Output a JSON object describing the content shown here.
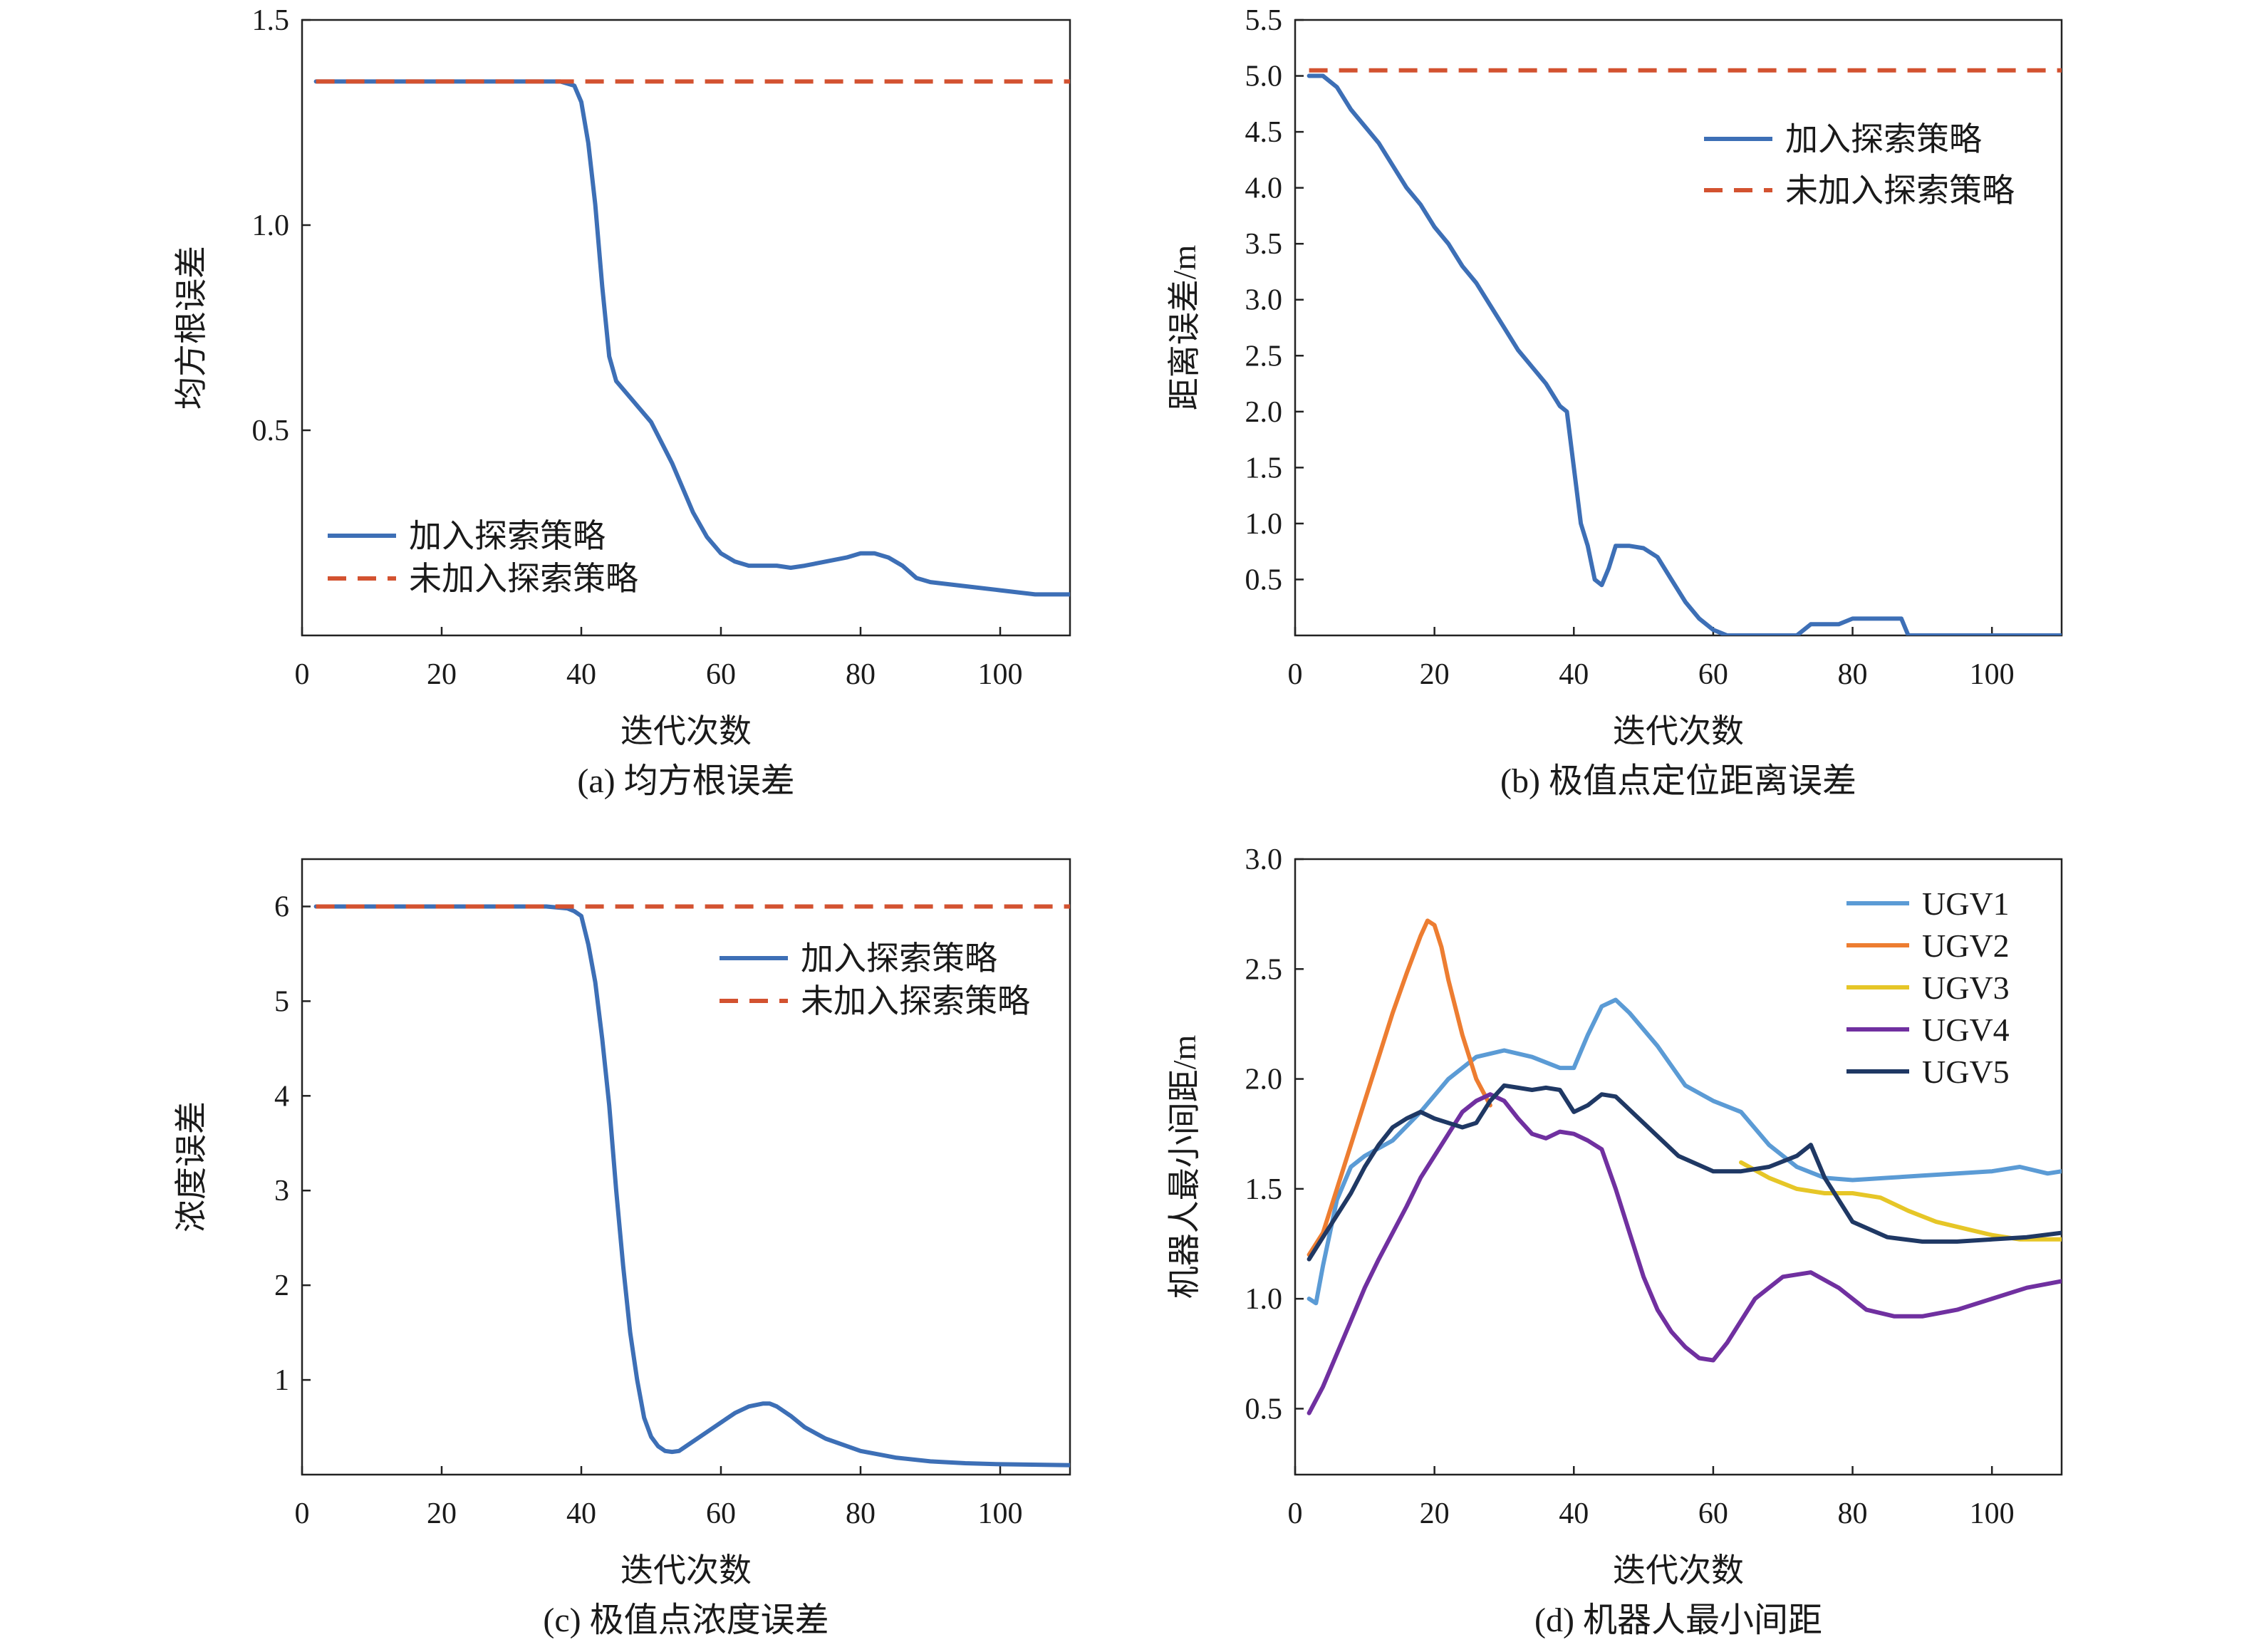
{
  "chart_data": [
    {
      "id": "a",
      "type": "line",
      "caption": "(a) 均方根误差",
      "xlabel": "迭代次数",
      "ylabel": "均方根误差",
      "xlim": [
        0,
        110
      ],
      "ylim": [
        0,
        1.5
      ],
      "xticks": [
        0,
        20,
        40,
        60,
        80,
        100
      ],
      "xtick_labels": [
        "0",
        "20",
        "40",
        "60",
        "80",
        "100"
      ],
      "yticks": [
        0.5,
        1.0,
        1.5
      ],
      "ytick_labels": [
        "0.5",
        "1.0",
        "1.5"
      ],
      "legend_position": "lower-left",
      "series": [
        {
          "name": "加入探索策略",
          "color": "#3d6fb6",
          "style": "solid",
          "x": [
            2,
            10,
            20,
            30,
            37,
            39,
            40,
            41,
            42,
            43,
            44,
            45,
            46,
            47,
            50,
            53,
            56,
            58,
            60,
            62,
            64,
            66,
            68,
            70,
            72,
            75,
            78,
            80,
            82,
            84,
            86,
            88,
            90,
            95,
            100,
            105,
            110
          ],
          "y": [
            1.35,
            1.35,
            1.35,
            1.35,
            1.35,
            1.34,
            1.3,
            1.2,
            1.05,
            0.85,
            0.68,
            0.62,
            0.6,
            0.58,
            0.52,
            0.42,
            0.3,
            0.24,
            0.2,
            0.18,
            0.17,
            0.17,
            0.17,
            0.165,
            0.17,
            0.18,
            0.19,
            0.2,
            0.2,
            0.19,
            0.17,
            0.14,
            0.13,
            0.12,
            0.11,
            0.1,
            0.1
          ]
        },
        {
          "name": "未加入探索策略",
          "color": "#d35230",
          "style": "dashed",
          "x": [
            2,
            110
          ],
          "y": [
            1.35,
            1.35
          ]
        }
      ]
    },
    {
      "id": "b",
      "type": "line",
      "caption": "(b) 极值点定位距离误差",
      "xlabel": "迭代次数",
      "ylabel": "距离误差/m",
      "xlim": [
        0,
        110
      ],
      "ylim": [
        0,
        5.5
      ],
      "xticks": [
        0,
        20,
        40,
        60,
        80,
        100
      ],
      "xtick_labels": [
        "0",
        "20",
        "40",
        "60",
        "80",
        "100"
      ],
      "yticks": [
        0.5,
        1.0,
        1.5,
        2.0,
        2.5,
        3.0,
        3.5,
        4.0,
        4.5,
        5.0,
        5.5
      ],
      "ytick_labels": [
        "0.5",
        "1.0",
        "1.5",
        "2.0",
        "2.5",
        "3.0",
        "3.5",
        "4.0",
        "4.5",
        "5.0",
        "5.5"
      ],
      "legend_position": "top-right",
      "series": [
        {
          "name": "加入探索策略",
          "color": "#3d6fb6",
          "style": "solid",
          "x": [
            2,
            4,
            6,
            8,
            10,
            12,
            14,
            16,
            18,
            20,
            22,
            24,
            26,
            28,
            30,
            32,
            34,
            36,
            38,
            39,
            40,
            41,
            42,
            43,
            44,
            45,
            46,
            48,
            50,
            52,
            54,
            56,
            58,
            60,
            62,
            64,
            66,
            68,
            70,
            72,
            74,
            76,
            78,
            80,
            82,
            84,
            86,
            87,
            88,
            90,
            95,
            100,
            105,
            110
          ],
          "y": [
            5.0,
            5.0,
            4.9,
            4.7,
            4.55,
            4.4,
            4.2,
            4.0,
            3.85,
            3.65,
            3.5,
            3.3,
            3.15,
            2.95,
            2.75,
            2.55,
            2.4,
            2.25,
            2.05,
            2.0,
            1.5,
            1.0,
            0.8,
            0.5,
            0.45,
            0.6,
            0.8,
            0.8,
            0.78,
            0.7,
            0.5,
            0.3,
            0.15,
            0.05,
            0.0,
            0.0,
            0.0,
            0.0,
            0.0,
            0.0,
            0.1,
            0.1,
            0.1,
            0.15,
            0.15,
            0.15,
            0.15,
            0.15,
            0.0,
            0.0,
            0.0,
            0.0,
            0.0,
            0.0
          ]
        },
        {
          "name": "未加入探索策略",
          "color": "#d35230",
          "style": "dashed",
          "x": [
            2,
            110
          ],
          "y": [
            5.05,
            5.05
          ]
        }
      ]
    },
    {
      "id": "c",
      "type": "line",
      "caption": "(c) 极值点浓度误差",
      "xlabel": "迭代次数",
      "ylabel": "浓度误差",
      "xlim": [
        0,
        110
      ],
      "ylim": [
        0,
        6.5
      ],
      "xticks": [
        0,
        20,
        40,
        60,
        80,
        100
      ],
      "xtick_labels": [
        "0",
        "20",
        "40",
        "60",
        "80",
        "100"
      ],
      "yticks": [
        1,
        2,
        3,
        4,
        5,
        6
      ],
      "ytick_labels": [
        "1",
        "2",
        "3",
        "4",
        "5",
        "6"
      ],
      "legend_position": "top-right",
      "series": [
        {
          "name": "加入探索策略",
          "color": "#3d6fb6",
          "style": "solid",
          "x": [
            2,
            10,
            20,
            30,
            35,
            38,
            39,
            40,
            41,
            42,
            43,
            44,
            45,
            46,
            47,
            48,
            49,
            50,
            51,
            52,
            53,
            54,
            55,
            56,
            58,
            60,
            62,
            64,
            66,
            67,
            68,
            70,
            72,
            75,
            80,
            85,
            90,
            95,
            100,
            110
          ],
          "y": [
            6.0,
            6.0,
            6.0,
            6.0,
            6.0,
            5.98,
            5.95,
            5.9,
            5.6,
            5.2,
            4.6,
            3.9,
            3.0,
            2.2,
            1.5,
            1.0,
            0.6,
            0.4,
            0.3,
            0.25,
            0.24,
            0.25,
            0.3,
            0.35,
            0.45,
            0.55,
            0.65,
            0.72,
            0.75,
            0.75,
            0.72,
            0.62,
            0.5,
            0.38,
            0.25,
            0.18,
            0.14,
            0.12,
            0.11,
            0.1
          ]
        },
        {
          "name": "未加入探索策略",
          "color": "#d35230",
          "style": "dashed",
          "x": [
            2,
            110
          ],
          "y": [
            6.0,
            6.0
          ]
        }
      ]
    },
    {
      "id": "d",
      "type": "line",
      "caption": "(d) 机器人最小间距",
      "xlabel": "迭代次数",
      "ylabel": "机器人最小间距/m",
      "xlim": [
        0,
        110
      ],
      "ylim": [
        0.2,
        3.0
      ],
      "xticks": [
        0,
        20,
        40,
        60,
        80,
        100
      ],
      "xtick_labels": [
        "0",
        "20",
        "40",
        "60",
        "80",
        "100"
      ],
      "yticks": [
        0.5,
        1.0,
        1.5,
        2.0,
        2.5,
        3.0
      ],
      "ytick_labels": [
        "0.5",
        "1.0",
        "1.5",
        "2.0",
        "2.5",
        "3.0"
      ],
      "legend_position": "top-right",
      "series": [
        {
          "name": "UGV1",
          "color": "#5b9bd5",
          "style": "solid",
          "x": [
            2,
            3,
            4,
            5,
            6,
            8,
            10,
            14,
            18,
            22,
            26,
            30,
            34,
            38,
            40,
            42,
            44,
            46,
            48,
            52,
            56,
            60,
            64,
            68,
            72,
            76,
            80,
            85,
            90,
            95,
            100,
            104,
            108,
            110
          ],
          "y": [
            1.0,
            0.98,
            1.15,
            1.3,
            1.45,
            1.6,
            1.65,
            1.72,
            1.85,
            2.0,
            2.1,
            2.13,
            2.1,
            2.05,
            2.05,
            2.2,
            2.33,
            2.36,
            2.3,
            2.15,
            1.97,
            1.9,
            1.85,
            1.7,
            1.6,
            1.55,
            1.54,
            1.55,
            1.56,
            1.57,
            1.58,
            1.6,
            1.57,
            1.58
          ]
        },
        {
          "name": "UGV2",
          "color": "#ed7d31",
          "style": "solid",
          "x": [
            2,
            4,
            6,
            8,
            10,
            12,
            14,
            16,
            18,
            19,
            20,
            21,
            22,
            24,
            26,
            28
          ],
          "y": [
            1.2,
            1.3,
            1.5,
            1.7,
            1.9,
            2.1,
            2.3,
            2.48,
            2.65,
            2.72,
            2.7,
            2.6,
            2.45,
            2.2,
            2.0,
            1.88
          ]
        },
        {
          "name": "UGV3",
          "color": "#e6c627",
          "style": "solid",
          "x": [
            64,
            68,
            72,
            76,
            80,
            84,
            88,
            92,
            96,
            100,
            104,
            108,
            110
          ],
          "y": [
            1.62,
            1.55,
            1.5,
            1.48,
            1.48,
            1.46,
            1.4,
            1.35,
            1.32,
            1.29,
            1.27,
            1.27,
            1.27
          ]
        },
        {
          "name": "UGV4",
          "color": "#7030a0",
          "style": "solid",
          "x": [
            2,
            4,
            6,
            8,
            10,
            12,
            14,
            16,
            18,
            20,
            22,
            24,
            26,
            28,
            30,
            32,
            34,
            36,
            38,
            40,
            42,
            44,
            46,
            48,
            50,
            52,
            54,
            56,
            58,
            60,
            62,
            64,
            66,
            70,
            74,
            78,
            82,
            86,
            90,
            95,
            100,
            105,
            110
          ],
          "y": [
            0.48,
            0.6,
            0.75,
            0.9,
            1.05,
            1.18,
            1.3,
            1.42,
            1.55,
            1.65,
            1.75,
            1.85,
            1.9,
            1.93,
            1.9,
            1.82,
            1.75,
            1.73,
            1.76,
            1.75,
            1.72,
            1.68,
            1.5,
            1.3,
            1.1,
            0.95,
            0.85,
            0.78,
            0.73,
            0.72,
            0.8,
            0.9,
            1.0,
            1.1,
            1.12,
            1.05,
            0.95,
            0.92,
            0.92,
            0.95,
            1.0,
            1.05,
            1.08
          ]
        },
        {
          "name": "UGV5",
          "color": "#1f3864",
          "style": "solid",
          "x": [
            2,
            4,
            6,
            8,
            10,
            12,
            14,
            16,
            18,
            20,
            22,
            24,
            26,
            28,
            30,
            32,
            34,
            36,
            38,
            40,
            42,
            44,
            46,
            50,
            55,
            60,
            64,
            68,
            72,
            74,
            76,
            80,
            85,
            90,
            95,
            100,
            105,
            110
          ],
          "y": [
            1.18,
            1.28,
            1.38,
            1.48,
            1.6,
            1.7,
            1.78,
            1.82,
            1.85,
            1.82,
            1.8,
            1.78,
            1.8,
            1.9,
            1.97,
            1.96,
            1.95,
            1.96,
            1.95,
            1.85,
            1.88,
            1.93,
            1.92,
            1.8,
            1.65,
            1.58,
            1.58,
            1.6,
            1.65,
            1.7,
            1.55,
            1.35,
            1.28,
            1.26,
            1.26,
            1.27,
            1.28,
            1.3
          ]
        }
      ]
    }
  ]
}
